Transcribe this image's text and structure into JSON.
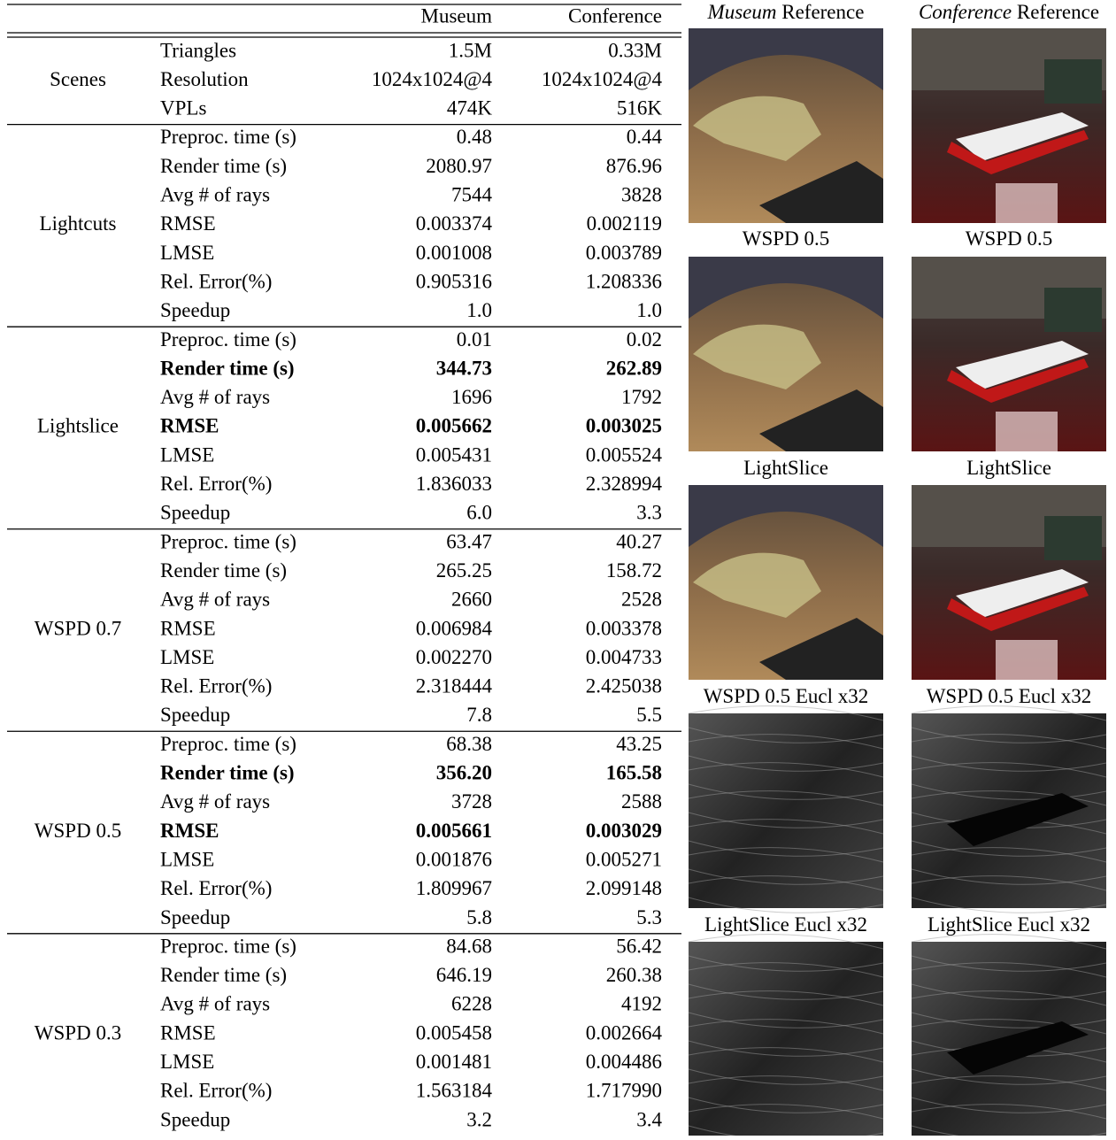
{
  "table": {
    "columns": [
      "Museum",
      "Conference"
    ],
    "groups": [
      {
        "name": "Scenes",
        "rows": [
          {
            "cells": [
              "Triangles",
              "1.5M",
              "0.33M"
            ]
          },
          {
            "cells": [
              "Resolution",
              "1024x1024@4",
              "1024x1024@4"
            ]
          },
          {
            "cells": [
              "VPLs",
              "474K",
              "516K"
            ]
          }
        ]
      },
      {
        "name": "Lightcuts",
        "rows": [
          {
            "cells": [
              "Preproc. time (s)",
              "0.48",
              "0.44"
            ]
          },
          {
            "cells": [
              "Render time (s)",
              "2080.97",
              "876.96"
            ]
          },
          {
            "cells": [
              "Avg # of rays",
              "7544",
              "3828"
            ]
          },
          {
            "cells": [
              "RMSE",
              "0.003374",
              "0.002119"
            ]
          },
          {
            "cells": [
              "LMSE",
              "0.001008",
              "0.003789"
            ]
          },
          {
            "cells": [
              "Rel. Error(%)",
              "0.905316",
              "1.208336"
            ]
          },
          {
            "cells": [
              "Speedup",
              "1.0",
              "1.0"
            ]
          }
        ]
      },
      {
        "name": "Lightslice",
        "rows": [
          {
            "cells": [
              "Preproc. time (s)",
              "0.01",
              "0.02"
            ]
          },
          {
            "cells": [
              "Render time (s)",
              "344.73",
              "262.89"
            ],
            "bold": true
          },
          {
            "cells": [
              "Avg # of rays",
              "1696",
              "1792"
            ]
          },
          {
            "cells": [
              "RMSE",
              "0.005662",
              "0.003025"
            ],
            "bold": true
          },
          {
            "cells": [
              "LMSE",
              "0.005431",
              "0.005524"
            ]
          },
          {
            "cells": [
              "Rel. Error(%)",
              "1.836033",
              "2.328994"
            ]
          },
          {
            "cells": [
              "Speedup",
              "6.0",
              "3.3"
            ]
          }
        ]
      },
      {
        "name": "WSPD 0.7",
        "rows": [
          {
            "cells": [
              "Preproc. time (s)",
              "63.47",
              "40.27"
            ]
          },
          {
            "cells": [
              "Render time (s)",
              "265.25",
              "158.72"
            ]
          },
          {
            "cells": [
              "Avg # of rays",
              "2660",
              "2528"
            ]
          },
          {
            "cells": [
              "RMSE",
              "0.006984",
              "0.003378"
            ]
          },
          {
            "cells": [
              "LMSE",
              "0.002270",
              "0.004733"
            ]
          },
          {
            "cells": [
              "Rel. Error(%)",
              "2.318444",
              "2.425038"
            ]
          },
          {
            "cells": [
              "Speedup",
              "7.8",
              "5.5"
            ]
          }
        ]
      },
      {
        "name": "WSPD 0.5",
        "rows": [
          {
            "cells": [
              "Preproc. time (s)",
              "68.38",
              "43.25"
            ]
          },
          {
            "cells": [
              "Render time (s)",
              "356.20",
              "165.58"
            ],
            "bold": true
          },
          {
            "cells": [
              "Avg # of rays",
              "3728",
              "2588"
            ]
          },
          {
            "cells": [
              "RMSE",
              "0.005661",
              "0.003029"
            ],
            "bold": true
          },
          {
            "cells": [
              "LMSE",
              "0.001876",
              "0.005271"
            ]
          },
          {
            "cells": [
              "Rel. Error(%)",
              "1.809967",
              "2.099148"
            ]
          },
          {
            "cells": [
              "Speedup",
              "5.8",
              "5.3"
            ]
          }
        ]
      },
      {
        "name": "WSPD 0.3",
        "rows": [
          {
            "cells": [
              "Preproc. time (s)",
              "84.68",
              "56.42"
            ]
          },
          {
            "cells": [
              "Render time (s)",
              "646.19",
              "260.38"
            ]
          },
          {
            "cells": [
              "Avg # of rays",
              "6228",
              "4192"
            ]
          },
          {
            "cells": [
              "RMSE",
              "0.005458",
              "0.002664"
            ]
          },
          {
            "cells": [
              "LMSE",
              "0.001481",
              "0.004486"
            ]
          },
          {
            "cells": [
              "Rel. Error(%)",
              "1.563184",
              "1.717990"
            ]
          },
          {
            "cells": [
              "Speedup",
              "3.2",
              "3.4"
            ]
          }
        ]
      }
    ]
  },
  "figures": {
    "captions": [
      [
        {
          "em": "Museum",
          "text": "Reference"
        },
        {
          "em": "Conference",
          "text": "Reference"
        }
      ],
      [
        {
          "text": "WSPD 0.5"
        },
        {
          "text": "WSPD 0.5"
        }
      ],
      [
        {
          "text": "LightSlice"
        },
        {
          "text": "LightSlice"
        }
      ],
      [
        {
          "text": "WSPD 0.5 Eucl x32"
        },
        {
          "text": "WSPD 0.5 Eucl x32"
        }
      ],
      [
        {
          "text": "LightSlice Eucl x32"
        },
        {
          "text": "LightSlice Eucl x32"
        }
      ]
    ]
  }
}
